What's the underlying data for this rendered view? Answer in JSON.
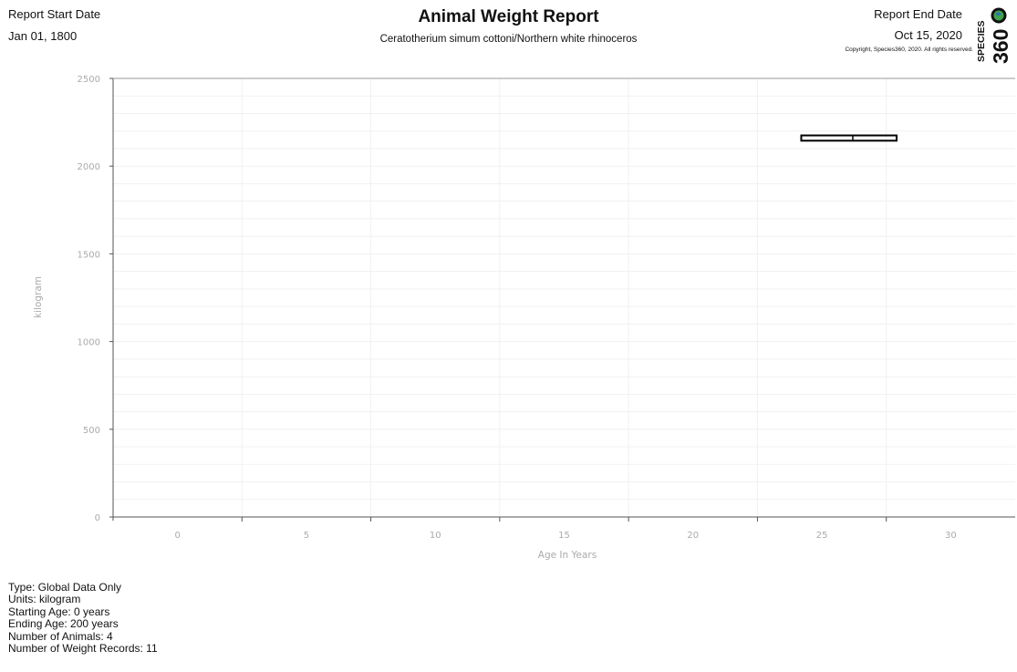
{
  "header": {
    "start_label": "Report Start Date",
    "start_value": "Jan 01, 1800",
    "title": "Animal Weight Report",
    "subtitle": "Ceratotherium simum cottoni/Northern white rhinoceros",
    "end_label": "Report End Date",
    "end_value": "Oct 15, 2020",
    "copyright": "Copyright, Species360, 2020. All rights reserved.",
    "logo_text": "SPECIES",
    "logo_number": "360",
    "logo_icon": "globe-icon"
  },
  "chart_data": {
    "type": "box",
    "xlabel": "Age In Years",
    "ylabel": "kilogram",
    "xlim": [
      -2.5,
      32.5
    ],
    "ylim": [
      0,
      2500
    ],
    "xticks": [
      0,
      5,
      10,
      15,
      20,
      25,
      30
    ],
    "yticks": [
      0,
      500,
      1000,
      1500,
      2000,
      2500
    ],
    "grid": true,
    "boxes": [
      {
        "x": 25,
        "x_start": 24.2,
        "x_end": 27.9,
        "median_x": 26.2,
        "low": 2145,
        "high": 2175
      }
    ]
  },
  "summary": {
    "type": "Type: Global Data Only",
    "units": "Units: kilogram",
    "starting_age": "Starting Age: 0 years",
    "ending_age": "Ending Age: 200 years",
    "animals": "Number of Animals: 4",
    "records": "Number of Weight Records: 11"
  },
  "colors": {
    "axis": "#555555",
    "grid": "#f1f1f1",
    "box": "#000000",
    "tick_text": "#aaaaaa"
  }
}
